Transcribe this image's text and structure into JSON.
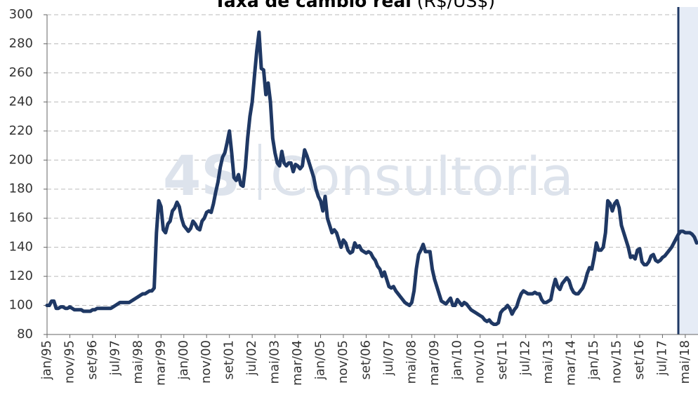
{
  "chart_data": {
    "type": "line",
    "title": "Taxa de câmbio real",
    "title_unit": "(R$/US$)",
    "watermark": {
      "logo": "4S",
      "text": "Consultoria"
    },
    "categories": [
      "jan/95",
      null,
      null,
      null,
      null,
      null,
      null,
      null,
      null,
      null,
      "nov/95",
      null,
      null,
      null,
      null,
      null,
      null,
      null,
      null,
      null,
      "set/96",
      null,
      null,
      null,
      null,
      null,
      null,
      null,
      null,
      null,
      "jul/97",
      null,
      null,
      null,
      null,
      null,
      null,
      null,
      null,
      null,
      "mai/98",
      null,
      null,
      null,
      null,
      null,
      null,
      null,
      null,
      null,
      "mar/99",
      null,
      null,
      null,
      null,
      null,
      null,
      null,
      null,
      null,
      "jan/00",
      null,
      null,
      null,
      null,
      null,
      null,
      null,
      null,
      null,
      "nov/00",
      null,
      null,
      null,
      null,
      null,
      null,
      null,
      null,
      null,
      "set/01",
      null,
      null,
      null,
      null,
      null,
      null,
      null,
      null,
      null,
      "jul/02",
      null,
      null,
      null,
      null,
      null,
      null,
      null,
      null,
      null,
      "mai/03",
      null,
      null,
      null,
      null,
      null,
      null,
      null,
      null,
      null,
      "mar/04",
      null,
      null,
      null,
      null,
      null,
      null,
      null,
      null,
      null,
      "jan/05",
      null,
      null,
      null,
      null,
      null,
      null,
      null,
      null,
      null,
      "nov/05",
      null,
      null,
      null,
      null,
      null,
      null,
      null,
      null,
      null,
      "set/06",
      null,
      null,
      null,
      null,
      null,
      null,
      null,
      null,
      null,
      "jul/07",
      null,
      null,
      null,
      null,
      null,
      null,
      null,
      null,
      null,
      "mai/08",
      null,
      null,
      null,
      null,
      null,
      null,
      null,
      null,
      null,
      "mar/09",
      null,
      null,
      null,
      null,
      null,
      null,
      null,
      null,
      null,
      "jan/10",
      null,
      null,
      null,
      null,
      null,
      null,
      null,
      null,
      null,
      "nov/10",
      null,
      null,
      null,
      null,
      null,
      null,
      null,
      null,
      null,
      "set/11",
      null,
      null,
      null,
      null,
      null,
      null,
      null,
      null,
      null,
      "jul/12",
      null,
      null,
      null,
      null,
      null,
      null,
      null,
      null,
      null,
      "mai/13",
      null,
      null,
      null,
      null,
      null,
      null,
      null,
      null,
      null,
      "mar/14",
      null,
      null,
      null,
      null,
      null,
      null,
      null,
      null,
      null,
      "jan/15",
      null,
      null,
      null,
      null,
      null,
      null,
      null,
      null,
      null,
      "nov/15",
      null,
      null,
      null,
      null,
      null,
      null,
      null,
      null,
      null,
      "set/16",
      null,
      null,
      null,
      null,
      null,
      null,
      null,
      null,
      null,
      "jul/17",
      null,
      null,
      null,
      null,
      null,
      null,
      null,
      null,
      null,
      "mai/18",
      null,
      null,
      null,
      null,
      null
    ],
    "values": [
      100,
      100,
      103,
      103,
      98,
      98,
      99,
      99,
      98,
      98,
      99,
      98,
      97,
      97,
      97,
      97,
      96,
      96,
      96,
      96,
      97,
      97,
      98,
      98,
      98,
      98,
      98,
      98,
      98,
      99,
      100,
      101,
      102,
      102,
      102,
      102,
      102,
      103,
      104,
      105,
      106,
      107,
      108,
      108,
      109,
      110,
      110,
      112,
      150,
      172,
      168,
      152,
      150,
      156,
      158,
      165,
      167,
      171,
      168,
      160,
      155,
      153,
      151,
      153,
      158,
      156,
      153,
      152,
      158,
      160,
      164,
      165,
      164,
      170,
      178,
      185,
      195,
      202,
      205,
      212,
      220,
      205,
      188,
      186,
      190,
      183,
      182,
      195,
      215,
      230,
      240,
      258,
      275,
      288,
      263,
      262,
      245,
      253,
      240,
      215,
      205,
      198,
      196,
      206,
      198,
      196,
      198,
      198,
      192,
      197,
      196,
      194,
      196,
      207,
      203,
      198,
      193,
      188,
      180,
      175,
      172,
      165,
      175,
      160,
      155,
      150,
      152,
      150,
      145,
      140,
      145,
      143,
      138,
      136,
      137,
      143,
      140,
      141,
      138,
      137,
      136,
      137,
      136,
      133,
      131,
      127,
      125,
      120,
      123,
      118,
      113,
      112,
      113,
      110,
      108,
      106,
      104,
      102,
      101,
      100,
      102,
      110,
      125,
      135,
      138,
      142,
      137,
      137,
      137,
      125,
      118,
      113,
      108,
      103,
      102,
      101,
      103,
      105,
      100,
      100,
      104,
      102,
      100,
      102,
      101,
      99,
      97,
      96,
      95,
      94,
      93,
      92,
      90,
      89,
      90,
      88,
      87,
      87,
      88,
      95,
      97,
      98,
      100,
      98,
      94,
      97,
      99,
      104,
      108,
      110,
      109,
      108,
      108,
      108,
      109,
      108,
      108,
      104,
      102,
      102,
      103,
      104,
      112,
      118,
      113,
      111,
      115,
      117,
      119,
      117,
      112,
      109,
      108,
      108,
      110,
      112,
      116,
      122,
      126,
      125,
      133,
      143,
      138,
      138,
      140,
      150,
      172,
      170,
      165,
      170,
      172,
      167,
      155,
      150,
      145,
      140,
      133,
      134,
      132,
      138,
      139,
      130,
      128,
      128,
      130,
      134,
      135,
      131,
      130,
      131,
      133,
      134,
      136,
      138,
      140,
      143,
      146,
      149,
      151,
      151,
      150,
      150,
      150,
      149,
      147,
      143
    ],
    "color": "#1f3864",
    "ylim": [
      80,
      300
    ],
    "yticks": [
      80,
      100,
      120,
      140,
      160,
      180,
      200,
      220,
      240,
      260,
      280,
      300
    ],
    "grid": true
  }
}
